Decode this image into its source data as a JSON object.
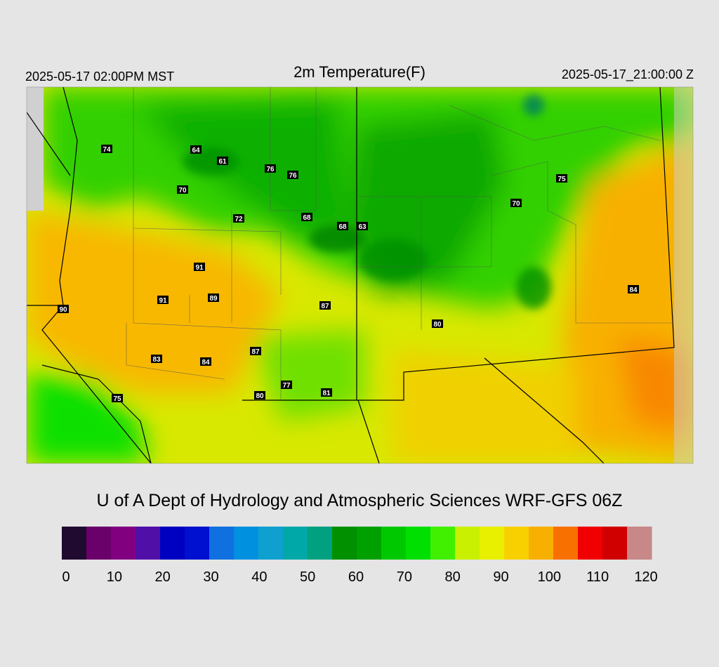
{
  "header": {
    "local_time": "2025-05-17 02:00PM MST",
    "title": "2m Temperature(F)",
    "utc_time": "2025-05-17_21:00:00 Z"
  },
  "map": {
    "labels": [
      74,
      64,
      61,
      76,
      76,
      70,
      75,
      70,
      72,
      68,
      68,
      63,
      91,
      84,
      91,
      89,
      90,
      87,
      80,
      87,
      83,
      84,
      77,
      80,
      81,
      75
    ]
  },
  "credit": "U of A Dept of Hydrology and Atmospheric Sciences WRF-GFS 06Z",
  "colorbar": {
    "ticks": [
      0,
      10,
      20,
      30,
      40,
      50,
      60,
      70,
      80,
      90,
      100,
      110,
      120
    ],
    "colors": [
      "#200a30",
      "#6a006a",
      "#800080",
      "#5010a8",
      "#0000c0",
      "#0010d0",
      "#1070e0",
      "#0090e0",
      "#10a0d0",
      "#00a8a8",
      "#00a080",
      "#009000",
      "#00a000",
      "#00c800",
      "#00e000",
      "#40f000",
      "#c8f000",
      "#e8f000",
      "#f8d000",
      "#f8b000",
      "#f87000",
      "#f00000",
      "#d00000",
      "#c88888"
    ]
  }
}
